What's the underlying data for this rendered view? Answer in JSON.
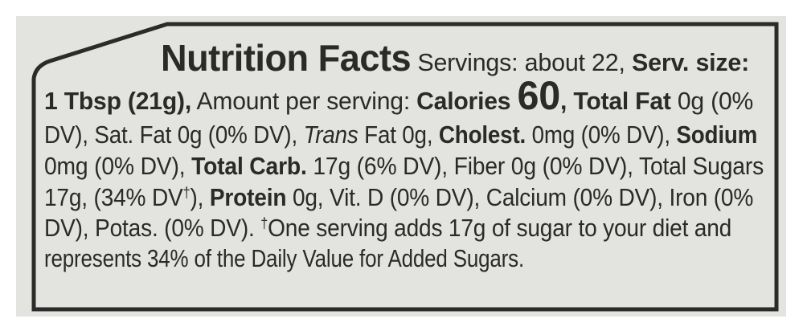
{
  "label": {
    "title": "Nutrition Facts",
    "servings": " Servings: about 22, ",
    "serv_size_label": "Serv. size:",
    "serv_size_value": "1 Tbsp (21g),",
    "amount_per_serving": " Amount per serving: ",
    "calories_label": "Calories ",
    "calories_value": "60",
    "total_fat_label": ", Total Fat",
    "total_fat_value": " 0g (0%",
    "line2a": "DV), Sat. Fat 0g (0% DV), ",
    "trans": "Trans",
    "line2b": " Fat 0g, ",
    "cholest_label": "Cholest.",
    "line2c": " 0mg (0% DV), ",
    "sodium_label": "Sodium",
    "line3a": "0mg (0% DV), ",
    "carb_label": "Total Carb.",
    "line3b": " 17g (6% DV), Fiber 0g (0% DV), Total Sugars",
    "line4a": "17g, (34% DV",
    "dagger": "†",
    "line4b": "), ",
    "protein_label": "Protein",
    "line4c": " 0g, Vit. D (0% DV), Calcium (0% DV), Iron (0%",
    "line5a": "DV), Potas. (0% DV). ",
    "line5b": "One serving adds 17g of sugar to your diet and",
    "line6": "represents 34% of the Daily Value for Added Sugars."
  }
}
